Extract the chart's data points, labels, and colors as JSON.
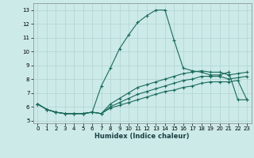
{
  "xlabel": "Humidex (Indice chaleur)",
  "bg_color": "#cceae8",
  "grid_color": "#b0d4d0",
  "line_color": "#1a6b5a",
  "xlim": [
    -0.5,
    23.5
  ],
  "ylim": [
    4.8,
    13.5
  ],
  "xticks": [
    0,
    1,
    2,
    3,
    4,
    5,
    6,
    7,
    8,
    9,
    10,
    11,
    12,
    13,
    14,
    15,
    16,
    17,
    18,
    19,
    20,
    21,
    22,
    23
  ],
  "yticks": [
    5,
    6,
    7,
    8,
    9,
    10,
    11,
    12,
    13
  ],
  "curves": [
    [
      6.2,
      5.8,
      5.6,
      5.5,
      5.5,
      5.5,
      5.6,
      7.5,
      8.8,
      10.2,
      11.2,
      12.1,
      12.6,
      13.0,
      13.0,
      10.8,
      8.8,
      8.6,
      8.5,
      8.3,
      8.3,
      8.5,
      6.5,
      6.5
    ],
    [
      6.2,
      5.8,
      5.6,
      5.5,
      5.5,
      5.5,
      5.6,
      5.5,
      6.2,
      6.6,
      7.0,
      7.4,
      7.6,
      7.8,
      8.0,
      8.2,
      8.4,
      8.5,
      8.6,
      8.5,
      8.5,
      8.3,
      8.4,
      8.5
    ],
    [
      6.2,
      5.8,
      5.6,
      5.5,
      5.5,
      5.5,
      5.6,
      5.5,
      6.0,
      6.3,
      6.6,
      6.9,
      7.1,
      7.3,
      7.5,
      7.7,
      7.9,
      8.0,
      8.2,
      8.2,
      8.2,
      8.0,
      8.1,
      8.2
    ],
    [
      6.2,
      5.8,
      5.6,
      5.5,
      5.5,
      5.5,
      5.6,
      5.5,
      5.9,
      6.1,
      6.3,
      6.5,
      6.7,
      6.9,
      7.1,
      7.2,
      7.4,
      7.5,
      7.7,
      7.8,
      7.8,
      7.8,
      7.9,
      6.5
    ]
  ]
}
